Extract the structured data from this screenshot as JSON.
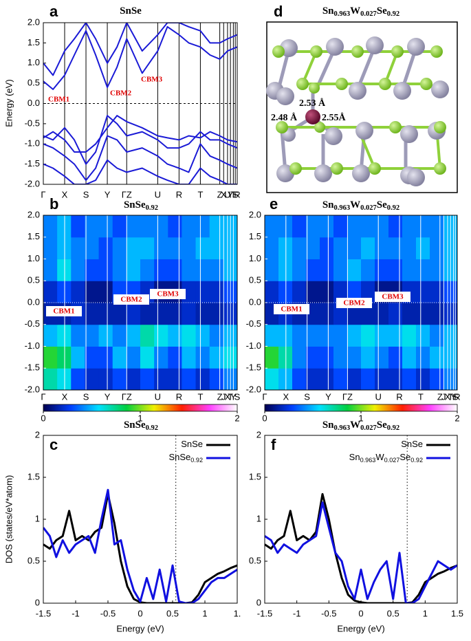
{
  "chart_data": [
    {
      "type": "line",
      "label": "a",
      "title": "SnSe",
      "ylabel": "Energy (eV)",
      "xlim": [
        0,
        100
      ],
      "ylim": [
        -2,
        2
      ],
      "xticks": [
        {
          "value": 0,
          "label": "Γ"
        },
        {
          "value": 11,
          "label": "X"
        },
        {
          "value": 22,
          "label": "S"
        },
        {
          "value": 33,
          "label": "Y"
        },
        {
          "value": 43,
          "label": "ΓZ"
        },
        {
          "value": 59,
          "label": "U"
        },
        {
          "value": 70,
          "label": "R"
        },
        {
          "value": 81,
          "label": "T"
        },
        {
          "value": 91,
          "label": "Z"
        },
        {
          "value": 93,
          "label": "X"
        },
        {
          "value": 95,
          "label": "U"
        },
        {
          "value": 96.5,
          "label": "Y"
        },
        {
          "value": 98,
          "label": "T"
        },
        {
          "value": 99,
          "label": "S"
        },
        {
          "value": 100,
          "label": "R"
        }
      ],
      "yticks": [
        {
          "value": -2,
          "label": "-2.0"
        },
        {
          "value": -1.5,
          "label": "-1.5"
        },
        {
          "value": -1,
          "label": "-1.0"
        },
        {
          "value": -0.5,
          "label": "-0.5"
        },
        {
          "value": 0,
          "label": "0.0"
        },
        {
          "value": 0.5,
          "label": "0.5"
        },
        {
          "value": 1,
          "label": "1.0"
        },
        {
          "value": 1.5,
          "label": "1.5"
        },
        {
          "value": 2,
          "label": "2.0"
        }
      ],
      "grid_color": "#000000",
      "hline": 0,
      "annotations": [
        "CBM1",
        "CBM2",
        "CBM3"
      ],
      "x": [
        0,
        5,
        11,
        16,
        22,
        27,
        33,
        38,
        43,
        51,
        59,
        64,
        70,
        75,
        81,
        86,
        91,
        95,
        100
      ],
      "series": [
        {
          "color": "#1a1ad6",
          "values": [
            0.55,
            0.35,
            0.7,
            1.2,
            1.8,
            1.2,
            0.4,
            0.9,
            1.6,
            0.75,
            1.3,
            1.9,
            1.7,
            1.5,
            1.4,
            1.2,
            1.1,
            1.3,
            1.4
          ]
        },
        {
          "color": "#1a1ad6",
          "values": [
            1.0,
            0.7,
            1.3,
            1.6,
            2.0,
            1.6,
            1.0,
            1.4,
            2.0,
            1.3,
            1.7,
            2.0,
            2.0,
            1.9,
            1.8,
            1.5,
            1.5,
            1.6,
            1.7
          ]
        },
        {
          "color": "#1a1ad6",
          "values": [
            -0.85,
            -0.7,
            -0.9,
            -1.2,
            -1.2,
            -1.0,
            -0.6,
            -0.3,
            -0.45,
            -0.6,
            -0.8,
            -0.85,
            -0.9,
            -0.8,
            -0.85,
            -0.7,
            -0.8,
            -0.9,
            -0.95
          ]
        },
        {
          "color": "#1a1ad6",
          "values": [
            -0.8,
            -0.9,
            -0.6,
            -0.9,
            -1.5,
            -1.2,
            -0.3,
            -0.5,
            -0.8,
            -0.7,
            -0.9,
            -1.1,
            -1.1,
            -1.0,
            -0.7,
            -0.9,
            -0.9,
            -1.0,
            -1.1
          ]
        },
        {
          "color": "#1a1ad6",
          "values": [
            -1.0,
            -1.1,
            -1.3,
            -1.5,
            -1.9,
            -1.6,
            -0.8,
            -0.9,
            -1.2,
            -1.1,
            -1.3,
            -1.5,
            -1.6,
            -1.7,
            -1.0,
            -1.3,
            -1.4,
            -1.5,
            -1.6
          ]
        },
        {
          "color": "#1a1ad6",
          "values": [
            -1.5,
            -1.6,
            -1.8,
            -2.0,
            -2.0,
            -1.9,
            -1.4,
            -1.6,
            -1.7,
            -1.6,
            -1.8,
            -1.9,
            -2.0,
            -2.0,
            -1.6,
            -1.8,
            -1.9,
            -2.0,
            -2.0
          ]
        }
      ]
    },
    {
      "type": "heatmap",
      "label": "b",
      "title": "SnSe0.92",
      "xlim": [
        0,
        100
      ],
      "ylim": [
        -2,
        2
      ],
      "xticks": [
        {
          "value": 0,
          "label": "Γ"
        },
        {
          "value": 11,
          "label": "X"
        },
        {
          "value": 22,
          "label": "S"
        },
        {
          "value": 33,
          "label": "Y"
        },
        {
          "value": 43,
          "label": "ΓZ"
        },
        {
          "value": 59,
          "label": "U"
        },
        {
          "value": 70,
          "label": "R"
        },
        {
          "value": 81,
          "label": "T"
        },
        {
          "value": 91,
          "label": "Z"
        },
        {
          "value": 93,
          "label": "J"
        },
        {
          "value": 95,
          "label": "X"
        },
        {
          "value": 96.5,
          "label": "T"
        },
        {
          "value": 98,
          "label": "Y"
        },
        {
          "value": 100,
          "label": "S"
        }
      ],
      "yticks": [
        {
          "value": -2,
          "label": "-2.0"
        },
        {
          "value": -1.5,
          "label": "-1.5"
        },
        {
          "value": -1,
          "label": "-1.0"
        },
        {
          "value": -0.5,
          "label": "-0.5"
        },
        {
          "value": 0,
          "label": "0.0"
        },
        {
          "value": 0.5,
          "label": "0.5"
        },
        {
          "value": 1,
          "label": "1.0"
        },
        {
          "value": 1.5,
          "label": "1.5"
        },
        {
          "value": 2,
          "label": "2.0"
        }
      ],
      "grid_color": "#ffffff",
      "hline": 0,
      "annotations": [
        "CBM1",
        "CBM2",
        "CBM3"
      ],
      "zlim": [
        0,
        2
      ],
      "zticks": [
        0,
        1,
        2
      ],
      "colormap": [
        "#000050",
        "#0040ff",
        "#00e0ff",
        "#00d040",
        "#f0f000",
        "#ff2000",
        "#ff40ff",
        "#ffffff"
      ],
      "z": [
        [
          0.7,
          0.6,
          0.3,
          0.2,
          0.2,
          0.3,
          0.2,
          0.3,
          0.2,
          0.2,
          0.3,
          0.2,
          0.3,
          0.4
        ],
        [
          0.9,
          0.8,
          0.5,
          0.3,
          0.3,
          0.5,
          0.4,
          0.6,
          0.4,
          0.3,
          0.5,
          0.4,
          0.5,
          0.6
        ],
        [
          0.5,
          0.6,
          0.4,
          0.4,
          0.5,
          0.4,
          0.5,
          0.7,
          0.6,
          0.5,
          0.6,
          0.5,
          0.4,
          0.5
        ],
        [
          0.15,
          0.15,
          0.2,
          0.15,
          0.15,
          0.15,
          0.2,
          0.15,
          0.15,
          0.15,
          0.2,
          0.15,
          0.15,
          0.2
        ],
        [
          0.2,
          0.3,
          0.2,
          0.1,
          0.1,
          0.3,
          0.3,
          0.2,
          0.1,
          0.1,
          0.2,
          0.2,
          0.2,
          0.3
        ],
        [
          0.4,
          0.6,
          0.4,
          0.3,
          0.3,
          0.4,
          0.5,
          0.4,
          0.3,
          0.3,
          0.4,
          0.4,
          0.4,
          0.5
        ],
        [
          0.4,
          0.5,
          0.4,
          0.4,
          0.3,
          0.4,
          0.5,
          0.5,
          0.4,
          0.4,
          0.4,
          0.5,
          0.5,
          0.5
        ],
        [
          0.4,
          0.5,
          0.3,
          0.4,
          0.4,
          0.3,
          0.4,
          0.4,
          0.4,
          0.3,
          0.4,
          0.4,
          0.5,
          0.5
        ]
      ]
    },
    {
      "type": "heatmap",
      "label": "e",
      "title": "Sn0.963W0.027Se0.92",
      "xlim": [
        0,
        100
      ],
      "ylim": [
        -2,
        2
      ],
      "xticks": [
        {
          "value": 0,
          "label": "Γ"
        },
        {
          "value": 11,
          "label": "X"
        },
        {
          "value": 22,
          "label": "S"
        },
        {
          "value": 33,
          "label": "Y"
        },
        {
          "value": 43,
          "label": "ΓZ"
        },
        {
          "value": 59,
          "label": "U"
        },
        {
          "value": 70,
          "label": "R"
        },
        {
          "value": 81,
          "label": "T"
        },
        {
          "value": 91,
          "label": "Z"
        },
        {
          "value": 93,
          "label": "J"
        },
        {
          "value": 95,
          "label": "X"
        },
        {
          "value": 96.5,
          "label": "T"
        },
        {
          "value": 98,
          "label": "Y"
        },
        {
          "value": 99,
          "label": "S"
        },
        {
          "value": 100,
          "label": "R"
        }
      ],
      "yticks": [
        {
          "value": -2,
          "label": "-2.0"
        },
        {
          "value": -1.5,
          "label": "-1.5"
        },
        {
          "value": -1,
          "label": "-1.0"
        },
        {
          "value": -0.5,
          "label": "-0.5"
        },
        {
          "value": 0,
          "label": "0.0"
        },
        {
          "value": 0.5,
          "label": "0.5"
        },
        {
          "value": 1,
          "label": "1.0"
        },
        {
          "value": 1.5,
          "label": "1.5"
        },
        {
          "value": 2,
          "label": "2.0"
        }
      ],
      "grid_color": "#ffffff",
      "hline": 0,
      "annotations": [
        "CBM1",
        "CBM2",
        "CBM3"
      ],
      "zlim": [
        0,
        2
      ],
      "zticks": [
        0,
        1,
        2
      ],
      "colormap": [
        "#000050",
        "#0040ff",
        "#00e0ff",
        "#00d040",
        "#f0f000",
        "#ff2000",
        "#ff40ff",
        "#ffffff"
      ],
      "z": [
        [
          0.6,
          0.5,
          0.3,
          0.2,
          0.2,
          0.3,
          0.2,
          0.3,
          0.2,
          0.2,
          0.3,
          0.2,
          0.3,
          0.4
        ],
        [
          0.9,
          0.7,
          0.4,
          0.3,
          0.3,
          0.4,
          0.4,
          0.5,
          0.4,
          0.3,
          0.5,
          0.4,
          0.5,
          0.5
        ],
        [
          0.5,
          0.5,
          0.4,
          0.4,
          0.4,
          0.4,
          0.5,
          0.6,
          0.5,
          0.5,
          0.6,
          0.5,
          0.4,
          0.5
        ],
        [
          0.15,
          0.2,
          0.15,
          0.15,
          0.15,
          0.2,
          0.15,
          0.15,
          0.15,
          0.2,
          0.15,
          0.15,
          0.15,
          0.2
        ],
        [
          0.2,
          0.3,
          0.2,
          0.1,
          0.1,
          0.2,
          0.3,
          0.2,
          0.1,
          0.1,
          0.2,
          0.2,
          0.2,
          0.3
        ],
        [
          0.4,
          0.5,
          0.4,
          0.3,
          0.3,
          0.4,
          0.5,
          0.4,
          0.3,
          0.3,
          0.4,
          0.4,
          0.4,
          0.5
        ],
        [
          0.4,
          0.5,
          0.4,
          0.4,
          0.3,
          0.4,
          0.4,
          0.5,
          0.4,
          0.4,
          0.4,
          0.5,
          0.4,
          0.5
        ],
        [
          0.4,
          0.4,
          0.3,
          0.4,
          0.4,
          0.3,
          0.4,
          0.4,
          0.4,
          0.3,
          0.4,
          0.4,
          0.4,
          0.5
        ]
      ]
    },
    {
      "type": "line",
      "label": "c",
      "title": "SnSe0.92",
      "ylabel": "DOS (states/eV*atom)",
      "xlabel": "Energy (eV)",
      "xlim": [
        -1.5,
        1.5
      ],
      "ylim": [
        0,
        2
      ],
      "xticks": [
        -1.5,
        -1,
        -0.5,
        0,
        0.5,
        1,
        {
          "value": 1.5,
          "label": "1."
        }
      ],
      "yticks": [
        0,
        0.5,
        1,
        1.5,
        2
      ],
      "vline": 0.55,
      "x": [
        -1.5,
        -1.4,
        -1.3,
        -1.2,
        -1.1,
        -1.0,
        -0.9,
        -0.8,
        -0.7,
        -0.6,
        -0.5,
        -0.4,
        -0.3,
        -0.2,
        -0.1,
        0,
        0.1,
        0.2,
        0.3,
        0.4,
        0.5,
        0.6,
        0.7,
        0.8,
        0.9,
        1.0,
        1.1,
        1.2,
        1.3,
        1.4,
        1.5
      ],
      "series": [
        {
          "name": "SnSe",
          "color": "#000000",
          "values": [
            0.7,
            0.65,
            0.75,
            0.8,
            1.1,
            0.75,
            0.8,
            0.75,
            0.85,
            0.9,
            1.3,
            0.95,
            0.5,
            0.2,
            0.05,
            0.01,
            0,
            0,
            0,
            0,
            0,
            0,
            0,
            0.01,
            0.1,
            0.25,
            0.3,
            0.35,
            0.38,
            0.42,
            0.45
          ]
        },
        {
          "name": "SnSe0.92",
          "color": "#1010e0",
          "values": [
            0.9,
            0.8,
            0.55,
            0.75,
            0.6,
            0.7,
            0.75,
            0.8,
            0.6,
            1.0,
            1.35,
            0.7,
            0.75,
            0.4,
            0.15,
            0.02,
            0.3,
            0.05,
            0.4,
            0.02,
            0.45,
            0.02,
            0,
            0,
            0.05,
            0.15,
            0.25,
            0.3,
            0.3,
            0.35,
            0.4
          ]
        }
      ]
    },
    {
      "type": "line",
      "label": "f",
      "title": "Sn0.963W0.027Se0.92",
      "xlabel": "Energy (eV)",
      "xlim": [
        -1.5,
        1.5
      ],
      "ylim": [
        0,
        2
      ],
      "xticks": [
        -1.5,
        -1,
        -0.5,
        0,
        0.5,
        1,
        1.5
      ],
      "yticks": [
        0,
        0.5,
        1,
        1.5,
        2
      ],
      "vline": 0.72,
      "x": [
        -1.5,
        -1.4,
        -1.3,
        -1.2,
        -1.1,
        -1.0,
        -0.9,
        -0.8,
        -0.7,
        -0.6,
        -0.5,
        -0.4,
        -0.3,
        -0.2,
        -0.1,
        0,
        0.1,
        0.2,
        0.3,
        0.4,
        0.5,
        0.6,
        0.7,
        0.8,
        0.9,
        1.0,
        1.1,
        1.2,
        1.3,
        1.4,
        1.5
      ],
      "series": [
        {
          "name": "SnSe",
          "color": "#000000",
          "values": [
            0.7,
            0.65,
            0.75,
            0.8,
            1.1,
            0.75,
            0.8,
            0.75,
            0.85,
            1.3,
            1.0,
            0.6,
            0.3,
            0.1,
            0.03,
            0.01,
            0,
            0,
            0,
            0,
            0,
            0,
            0,
            0.01,
            0.1,
            0.25,
            0.3,
            0.35,
            0.38,
            0.42,
            0.45
          ]
        },
        {
          "name": "Sn0.963W0.027Se0.92",
          "color": "#1010e0",
          "values": [
            0.8,
            0.75,
            0.6,
            0.7,
            0.65,
            0.6,
            0.7,
            0.75,
            0.8,
            1.2,
            0.9,
            0.6,
            0.5,
            0.2,
            0.05,
            0.4,
            0.05,
            0.25,
            0.4,
            0.5,
            0.05,
            0.6,
            0,
            0,
            0.05,
            0.2,
            0.35,
            0.5,
            0.45,
            0.4,
            0.45
          ]
        }
      ]
    }
  ],
  "structure": {
    "label": "d",
    "title": "Sn0.963W0.027Se0.92",
    "bond_lengths": [
      "2.53 Å",
      "2.48 Å",
      "2.55Å"
    ]
  }
}
